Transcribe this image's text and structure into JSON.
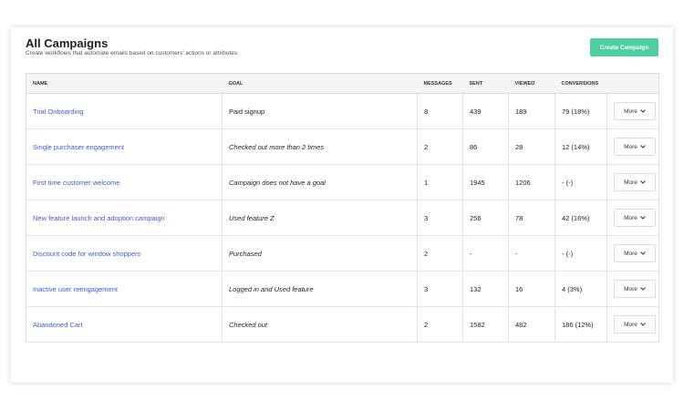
{
  "header": {
    "title": "All Campaigns",
    "subtitle": "Create workflows that automate emails based on customers' actions or attributes",
    "button": "Create Campaign"
  },
  "table": {
    "columns": [
      "NAME",
      "GOAL",
      "MESSAGES",
      "SENT",
      "VIEWED",
      "CONVERSIONS"
    ],
    "rows": [
      [
        "Trial Onboarding",
        "Paid signup",
        8,
        439,
        189,
        "79 (18%)",
        "More"
      ],
      [
        "Single purchaser engagement",
        "Checked out more than 2 times",
        2,
        86,
        28,
        "12 (14%)",
        "More"
      ],
      [
        "First time customer welcome",
        "Campaign does not have a goal",
        1,
        1945,
        1206,
        "- (-)",
        "More"
      ],
      [
        "New feature launch and adoption campaign",
        "Used feature Z",
        3,
        256,
        78,
        "42 (16%)",
        "More"
      ],
      [
        "Discount code for window shoppers",
        "Purchased",
        2,
        "-",
        "-",
        "- (-)",
        "More"
      ],
      [
        "Inactive user reengagement",
        "Logged in and Used feature",
        3,
        132,
        16,
        "4 (3%)",
        "More"
      ],
      [
        "Abandoned Cart",
        "Checked out",
        2,
        1582,
        482,
        "186 (12%)",
        "More"
      ]
    ]
  }
}
